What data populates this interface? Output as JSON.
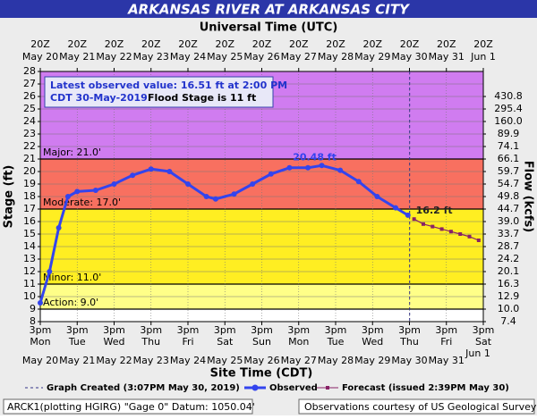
{
  "chart_data": {
    "type": "hydrograph",
    "title": "ARKANSAS RIVER AT ARKANSAS CITY",
    "top_axis_label": "Universal Time (UTC)",
    "x_label": "Site Time (CDT)",
    "y_label": "Stage (ft)",
    "y2_label": "Flow (kcfs)",
    "xlim": [
      "2019-05-20T15:00",
      "2019-06-01T15:00"
    ],
    "xticks": [
      {
        "value": "2019-05-20T15:00",
        "label": "May 20"
      },
      {
        "value": "2019-05-21T15:00",
        "label": "May 21"
      },
      {
        "value": "2019-05-22T15:00",
        "label": "May 22"
      },
      {
        "value": "2019-05-23T15:00",
        "label": "May 23"
      },
      {
        "value": "2019-05-24T15:00",
        "label": "May 24"
      },
      {
        "value": "2019-05-25T15:00",
        "label": "May 25"
      },
      {
        "value": "2019-05-26T15:00",
        "label": "May 26"
      },
      {
        "value": "2019-05-27T15:00",
        "label": "May 27"
      },
      {
        "value": "2019-05-28T15:00",
        "label": "May 28"
      },
      {
        "value": "2019-05-29T15:00",
        "label": "May 29"
      },
      {
        "value": "2019-05-30T15:00",
        "label": "May 30"
      },
      {
        "value": "2019-05-31T15:00",
        "label": "May 31"
      },
      {
        "value": "2019-06-01T15:00",
        "label": "Jun 1"
      }
    ],
    "weekdays": [
      "Mon",
      "Tue",
      "Wed",
      "Thu",
      "Fri",
      "Sat",
      "Sun",
      "Mon",
      "Tue",
      "Wed",
      "Thu",
      "Fri",
      "Sat"
    ],
    "site_tick_time": "3pm",
    "utc_tick_time": "20Z",
    "ylim": [
      8,
      28
    ],
    "yticks": [
      8,
      9,
      10,
      11,
      12,
      13,
      14,
      15,
      16,
      17,
      18,
      19,
      20,
      21,
      22,
      23,
      24,
      25,
      26,
      27,
      28
    ],
    "y2ticks": [
      7.4,
      {
        "value": 10,
        "label": "10.0"
      },
      12.9,
      16.3,
      20.1,
      24.2,
      28.7,
      33.7,
      {
        "value": 39,
        "label": "39.0"
      },
      44.7,
      49.8,
      54.7,
      59.7,
      66.1,
      74.1,
      89.9,
      {
        "value": 160,
        "label": "160.0"
      },
      295.4,
      430.8
    ],
    "grid": true,
    "flood_categories": [
      {
        "label": "Action: 9.0'",
        "value": 9,
        "color": "#ffff88"
      },
      {
        "label": "Minor: 11.0'",
        "value": 11,
        "color": "#ffee22"
      },
      {
        "label": "Moderate: 17.0'",
        "value": 17,
        "color": "#f87060"
      },
      {
        "label": "Major: 21.0'",
        "value": 21,
        "color": "#d07cf0"
      }
    ],
    "series": [
      {
        "name": "Observed",
        "color": "#3344ee",
        "x": [
          "2019-05-20T15:00",
          "2019-05-20T21:00",
          "2019-05-21T03:00",
          "2019-05-21T09:00",
          "2019-05-21T15:00",
          "2019-05-22T03:00",
          "2019-05-22T15:00",
          "2019-05-23T03:00",
          "2019-05-23T15:00",
          "2019-05-24T03:00",
          "2019-05-24T15:00",
          "2019-05-25T03:00",
          "2019-05-25T09:00",
          "2019-05-25T21:00",
          "2019-05-26T09:00",
          "2019-05-26T21:00",
          "2019-05-27T09:00",
          "2019-05-27T21:00",
          "2019-05-28T06:00",
          "2019-05-28T18:00",
          "2019-05-29T06:00",
          "2019-05-29T18:00",
          "2019-05-30T06:00",
          "2019-05-30T14:00"
        ],
        "values": [
          9.5,
          12,
          15.5,
          18,
          18.4,
          18.5,
          19,
          19.7,
          20.2,
          20,
          19,
          18,
          17.8,
          18.2,
          19,
          19.8,
          20.3,
          20.3,
          20.48,
          20.1,
          19.2,
          18,
          17.1,
          16.51
        ]
      },
      {
        "name": "Forecast (issued 2:39PM May 30)",
        "color": "#882266",
        "x": [
          "2019-05-30T18:00",
          "2019-05-31T00:00",
          "2019-05-31T06:00",
          "2019-05-31T12:00",
          "2019-05-31T18:00",
          "2019-06-01T00:00",
          "2019-06-01T06:00",
          "2019-06-01T12:00"
        ],
        "values": [
          16.2,
          15.8,
          15.6,
          15.4,
          15.2,
          15,
          14.8,
          14.5
        ]
      }
    ],
    "peak_label": "20.48 ft",
    "forecast_label": "16.2 ft",
    "created_time": "2019-05-30T15:07",
    "created_legend": "Graph Created (3:07PM May 30, 2019)",
    "observed_legend": "Observed",
    "info_text_1": "Latest observed value: 16.51 ft at 2:00 PM",
    "info_text_2": "CDT 30-May-2019.",
    "info_text_3": "Flood Stage is 11 ft",
    "footer_left": "ARCK1(plotting HGIRG) \"Gage 0\" Datum: 1050.04'",
    "footer_right": "Observations courtesy of US Geological Survey"
  }
}
